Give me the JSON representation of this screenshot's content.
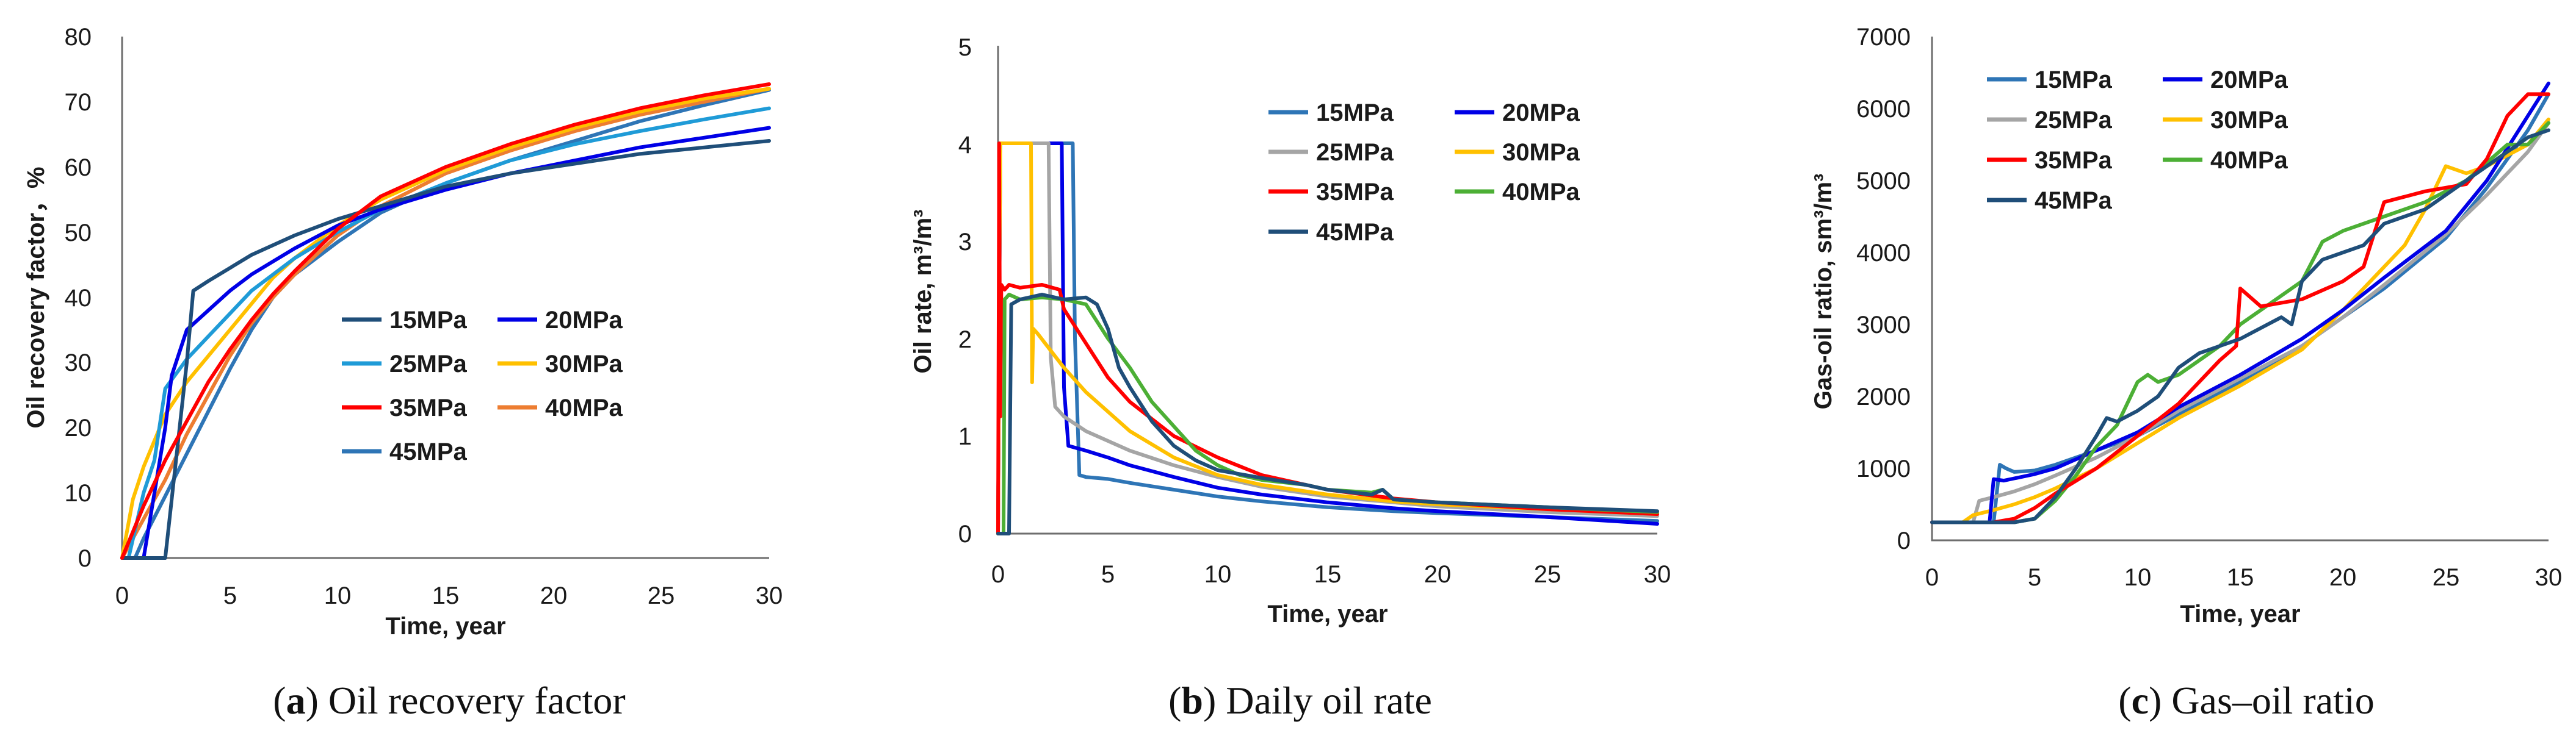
{
  "colors": {
    "15MPa": "#2e75b6",
    "20MPa": "#0000e6",
    "25MPa": "#a5a5a5",
    "30MPa": "#ffc000",
    "35MPa": "#ff0000",
    "40MPa": "#4caf35",
    "45MPa": "#1f4e79"
  },
  "chart_data": [
    {
      "type": "line",
      "caption_letter": "a",
      "caption_text": "Oil recovery factor",
      "xlabel": "Time, year",
      "ylabel": "Oil recovery factor，%",
      "xlim": [
        0,
        30
      ],
      "ylim": [
        0,
        80
      ],
      "xticks": [
        0,
        5,
        10,
        15,
        20,
        25,
        30
      ],
      "yticks": [
        0,
        10,
        20,
        30,
        40,
        50,
        60,
        70,
        80
      ],
      "legend_position": "lower-right",
      "legend_cols": 2,
      "legend_order": [
        "15MPa",
        "20MPa",
        "25MPa",
        "30MPa",
        "35MPa",
        "40MPa",
        "45MPa"
      ],
      "legend_colors": {
        "15MPa": "#1f4e79",
        "20MPa": "#0000e6",
        "25MPa": "#1f9bd7",
        "30MPa": "#ffc000",
        "35MPa": "#ff0000",
        "40MPa": "#ed7d31",
        "45MPa": "#2e75b6"
      },
      "series": [
        {
          "name": "15MPa",
          "x": [
            0,
            0.5,
            1,
            2,
            3,
            3.3,
            4,
            5,
            6,
            7,
            8,
            10,
            12,
            15,
            18,
            21,
            24,
            27,
            30
          ],
          "values": [
            0,
            0,
            0,
            0,
            30,
            41,
            42.5,
            44.5,
            46.5,
            48,
            49.5,
            52,
            54,
            57,
            59,
            60.5,
            62,
            63,
            64
          ]
        },
        {
          "name": "20MPa",
          "x": [
            0,
            0.3,
            1,
            2,
            2.3,
            3,
            4,
            5,
            6,
            7,
            8,
            10,
            12,
            15,
            18,
            21,
            24,
            27,
            30
          ],
          "values": [
            0,
            0,
            0,
            20,
            28,
            35,
            38,
            41,
            43.5,
            45.5,
            47.5,
            51,
            53.5,
            56.5,
            59,
            61,
            63,
            64.5,
            66
          ]
        },
        {
          "name": "25MPa",
          "x": [
            0,
            0.3,
            1,
            1.5,
            2,
            3,
            4,
            5,
            6,
            7,
            8,
            10,
            12,
            15,
            18,
            21,
            24,
            27,
            30
          ],
          "values": [
            0,
            0,
            10,
            15,
            26,
            30.5,
            34,
            37.5,
            41,
            43.5,
            46,
            50,
            53.5,
            57.5,
            61,
            63.5,
            65.5,
            67.3,
            69
          ]
        },
        {
          "name": "30MPa",
          "x": [
            0,
            0.5,
            1,
            1.5,
            2,
            3,
            4,
            5,
            6,
            7,
            8,
            10,
            12,
            15,
            18,
            21,
            24,
            27,
            30
          ],
          "values": [
            0,
            9,
            14,
            18,
            22,
            27,
            31,
            35,
            39,
            43,
            46,
            51,
            55,
            59.5,
            63,
            66,
            68.5,
            70.5,
            72
          ]
        },
        {
          "name": "35MPa",
          "x": [
            0,
            1,
            2,
            3,
            4,
            5,
            6,
            7,
            8,
            10,
            12,
            15,
            18,
            21,
            24,
            27,
            30
          ],
          "values": [
            0,
            8,
            15,
            21,
            27,
            32,
            36.5,
            40.5,
            44,
            50.5,
            55.5,
            60,
            63.5,
            66.5,
            69,
            71,
            72.7
          ]
        },
        {
          "name": "40MPa",
          "x": [
            0,
            1,
            2,
            3,
            4,
            5,
            6,
            7,
            8,
            10,
            12,
            15,
            18,
            21,
            24,
            27,
            30
          ],
          "values": [
            0,
            6,
            12,
            19,
            25,
            31,
            36,
            40,
            43.5,
            49.5,
            54,
            59,
            62.5,
            65.5,
            68,
            70,
            72
          ]
        },
        {
          "name": "45MPa",
          "x": [
            0,
            0.6,
            1,
            2,
            3,
            4,
            5,
            6,
            7,
            8,
            10,
            12,
            15,
            18,
            21,
            24,
            27,
            30
          ],
          "values": [
            0,
            0,
            3,
            9.5,
            16,
            22.5,
            29,
            35,
            40,
            43.5,
            48.5,
            53,
            57.5,
            61,
            64,
            67,
            69.5,
            71.8
          ]
        }
      ]
    },
    {
      "type": "line",
      "caption_letter": "b",
      "caption_text": "Daily oil rate",
      "xlabel": "Time, year",
      "ylabel": "Oil rate, m³/m³",
      "xlim": [
        0,
        30
      ],
      "ylim": [
        0,
        5
      ],
      "xticks": [
        0,
        5,
        10,
        15,
        20,
        25,
        30
      ],
      "yticks": [
        0,
        1,
        2,
        3,
        4,
        5
      ],
      "legend_position": "upper-right",
      "legend_cols": 2,
      "legend_order": [
        "15MPa",
        "20MPa",
        "25MPa",
        "30MPa",
        "35MPa",
        "40MPa",
        "45MPa"
      ],
      "series": [
        {
          "name": "15MPa",
          "x": [
            0,
            0.1,
            0.2,
            3.3,
            3.4,
            3.5,
            3.7,
            4,
            5,
            6,
            8,
            10,
            12,
            15,
            18,
            20,
            25,
            30
          ],
          "values": [
            0,
            4,
            4,
            4,
            4,
            2,
            0.6,
            0.58,
            0.56,
            0.52,
            0.45,
            0.38,
            0.33,
            0.27,
            0.23,
            0.21,
            0.17,
            0.13
          ]
        },
        {
          "name": "20MPa",
          "x": [
            0,
            0.1,
            0.2,
            2.8,
            2.9,
            3,
            3.2,
            4,
            5,
            6,
            8,
            10,
            12,
            15,
            18,
            20,
            25,
            30
          ],
          "values": [
            0,
            4,
            4,
            4,
            4,
            1.5,
            0.9,
            0.85,
            0.78,
            0.7,
            0.58,
            0.47,
            0.4,
            0.32,
            0.26,
            0.23,
            0.17,
            0.1
          ]
        },
        {
          "name": "25MPa",
          "x": [
            0,
            0.1,
            0.2,
            2.2,
            2.3,
            2.4,
            2.6,
            3,
            4,
            5,
            6,
            8,
            10,
            12,
            15,
            18,
            20,
            25,
            30
          ],
          "values": [
            0,
            4,
            4,
            4,
            4,
            1.8,
            1.3,
            1.2,
            1.05,
            0.95,
            0.85,
            0.7,
            0.58,
            0.48,
            0.38,
            0.32,
            0.28,
            0.22,
            0.18
          ]
        },
        {
          "name": "30MPa",
          "x": [
            0,
            0.1,
            0.2,
            1.5,
            1.55,
            1.6,
            1.8,
            3,
            4,
            5,
            6,
            8,
            10,
            12,
            15,
            18,
            20,
            25,
            30
          ],
          "values": [
            0,
            4,
            4,
            4,
            1.55,
            2.1,
            2.05,
            1.7,
            1.45,
            1.25,
            1.05,
            0.78,
            0.6,
            0.5,
            0.4,
            0.33,
            0.3,
            0.25,
            0.2
          ]
        },
        {
          "name": "35MPa",
          "x": [
            0,
            0.05,
            0.1,
            0.15,
            0.3,
            0.5,
            1,
            2,
            2.8,
            3,
            4,
            5,
            6,
            8,
            10,
            12,
            15,
            18,
            20,
            25,
            30
          ],
          "values": [
            0,
            4,
            1.2,
            2.55,
            2.5,
            2.55,
            2.52,
            2.55,
            2.5,
            2.3,
            1.95,
            1.6,
            1.35,
            1.0,
            0.78,
            0.6,
            0.45,
            0.36,
            0.32,
            0.25,
            0.2
          ]
        },
        {
          "name": "40MPa",
          "x": [
            0,
            0.25,
            0.3,
            0.5,
            1,
            2,
            3,
            4,
            5,
            6,
            7,
            8,
            9,
            10,
            11,
            12,
            14,
            15,
            17,
            17.5,
            18,
            20,
            25,
            30
          ],
          "values": [
            0,
            0,
            2.4,
            2.45,
            2.4,
            2.42,
            2.4,
            2.35,
            2.0,
            1.7,
            1.35,
            1.1,
            0.85,
            0.7,
            0.6,
            0.55,
            0.5,
            0.45,
            0.42,
            0.45,
            0.35,
            0.32,
            0.27,
            0.22
          ]
        },
        {
          "name": "45MPa",
          "x": [
            0,
            0.5,
            0.6,
            1,
            2,
            3,
            4,
            4.5,
            5,
            5.5,
            6,
            7,
            8,
            9,
            10,
            12,
            14,
            15,
            17,
            17.5,
            18,
            20,
            25,
            30
          ],
          "values": [
            0,
            0,
            2.35,
            2.4,
            2.45,
            2.4,
            2.42,
            2.35,
            2.1,
            1.7,
            1.5,
            1.15,
            0.9,
            0.75,
            0.65,
            0.57,
            0.5,
            0.45,
            0.4,
            0.45,
            0.35,
            0.32,
            0.27,
            0.23
          ]
        }
      ]
    },
    {
      "type": "line",
      "caption_letter": "c",
      "caption_text": "Gas–oil ratio",
      "xlabel": "Time, year",
      "ylabel": "Gas-oil ratio, sm³/m³",
      "xlim": [
        0,
        30
      ],
      "ylim": [
        0,
        7000
      ],
      "xticks": [
        0,
        5,
        10,
        15,
        20,
        25,
        30
      ],
      "yticks": [
        0,
        1000,
        2000,
        3000,
        4000,
        5000,
        6000,
        7000
      ],
      "legend_position": "upper-left",
      "legend_cols": 2,
      "legend_order": [
        "15MPa",
        "20MPa",
        "25MPa",
        "30MPa",
        "35MPa",
        "40MPa",
        "45MPa"
      ],
      "series": [
        {
          "name": "15MPa",
          "x": [
            0,
            0.5,
            1,
            3,
            3.3,
            3.6,
            4,
            5,
            6,
            8,
            10,
            12,
            15,
            18,
            20,
            22,
            25,
            27,
            29,
            30
          ],
          "values": [
            250,
            250,
            250,
            250,
            1050,
            1000,
            950,
            970,
            1050,
            1250,
            1450,
            1750,
            2200,
            2700,
            3100,
            3500,
            4200,
            4900,
            5700,
            6200
          ]
        },
        {
          "name": "20MPa",
          "x": [
            0,
            0.5,
            1,
            2.8,
            3,
            3.5,
            4,
            5,
            6,
            8,
            10,
            12,
            15,
            18,
            20,
            22,
            25,
            27,
            29,
            30
          ],
          "values": [
            250,
            250,
            250,
            250,
            850,
            830,
            860,
            920,
            1000,
            1250,
            1500,
            1850,
            2300,
            2800,
            3200,
            3650,
            4300,
            5000,
            5900,
            6350
          ]
        },
        {
          "name": "25MPa",
          "x": [
            0,
            0.5,
            1,
            2,
            2.3,
            3,
            4,
            5,
            6,
            8,
            10,
            12,
            15,
            18,
            20,
            22,
            25,
            27,
            29,
            30
          ],
          "values": [
            250,
            250,
            250,
            250,
            550,
            600,
            680,
            780,
            900,
            1150,
            1450,
            1800,
            2250,
            2700,
            3100,
            3550,
            4250,
            4800,
            5400,
            5800
          ]
        },
        {
          "name": "30MPa",
          "x": [
            0,
            0.5,
            1,
            1.5,
            2,
            3,
            4,
            5,
            6,
            8,
            10,
            12,
            15,
            18,
            20,
            22,
            23,
            24,
            25,
            26,
            27,
            29,
            30
          ],
          "values": [
            250,
            250,
            250,
            250,
            350,
            420,
            500,
            600,
            720,
            1000,
            1350,
            1700,
            2150,
            2650,
            3200,
            3800,
            4100,
            4600,
            5200,
            5100,
            5200,
            5500,
            5850
          ]
        },
        {
          "name": "35MPa",
          "x": [
            0,
            0.3,
            1,
            2,
            3,
            4,
            5,
            6,
            8,
            10,
            12,
            14,
            14.8,
            15,
            16,
            17,
            18,
            20,
            21,
            22,
            24,
            26,
            27,
            28,
            29,
            30
          ],
          "values": [
            250,
            250,
            250,
            250,
            250,
            300,
            450,
            650,
            1000,
            1450,
            1900,
            2500,
            2700,
            3500,
            3250,
            3300,
            3350,
            3600,
            3800,
            4700,
            4850,
            4950,
            5300,
            5900,
            6200,
            6200
          ]
        },
        {
          "name": "40MPa",
          "x": [
            0,
            0.3,
            1,
            3,
            4,
            5,
            6,
            7,
            8,
            9,
            10,
            10.5,
            11,
            12,
            13,
            14,
            15,
            16,
            17,
            18,
            19,
            20,
            22,
            24,
            26,
            28,
            29,
            30
          ],
          "values": [
            250,
            250,
            250,
            250,
            250,
            300,
            550,
            900,
            1300,
            1600,
            2200,
            2300,
            2200,
            2300,
            2500,
            2700,
            3000,
            3200,
            3400,
            3600,
            4150,
            4300,
            4500,
            4700,
            5000,
            5500,
            5500,
            5800
          ]
        },
        {
          "name": "45MPa",
          "x": [
            0,
            0.5,
            1,
            3,
            4,
            5,
            6,
            7,
            8,
            8.5,
            9,
            10,
            11,
            12,
            13,
            14,
            15,
            16,
            17,
            17.5,
            18,
            19,
            20,
            21,
            22,
            24,
            26,
            28,
            29,
            30
          ],
          "values": [
            250,
            250,
            250,
            250,
            250,
            300,
            600,
            1000,
            1450,
            1700,
            1650,
            1800,
            2000,
            2400,
            2600,
            2700,
            2800,
            2950,
            3100,
            3000,
            3600,
            3900,
            4000,
            4100,
            4400,
            4600,
            5000,
            5400,
            5600,
            5700
          ]
        }
      ]
    }
  ]
}
